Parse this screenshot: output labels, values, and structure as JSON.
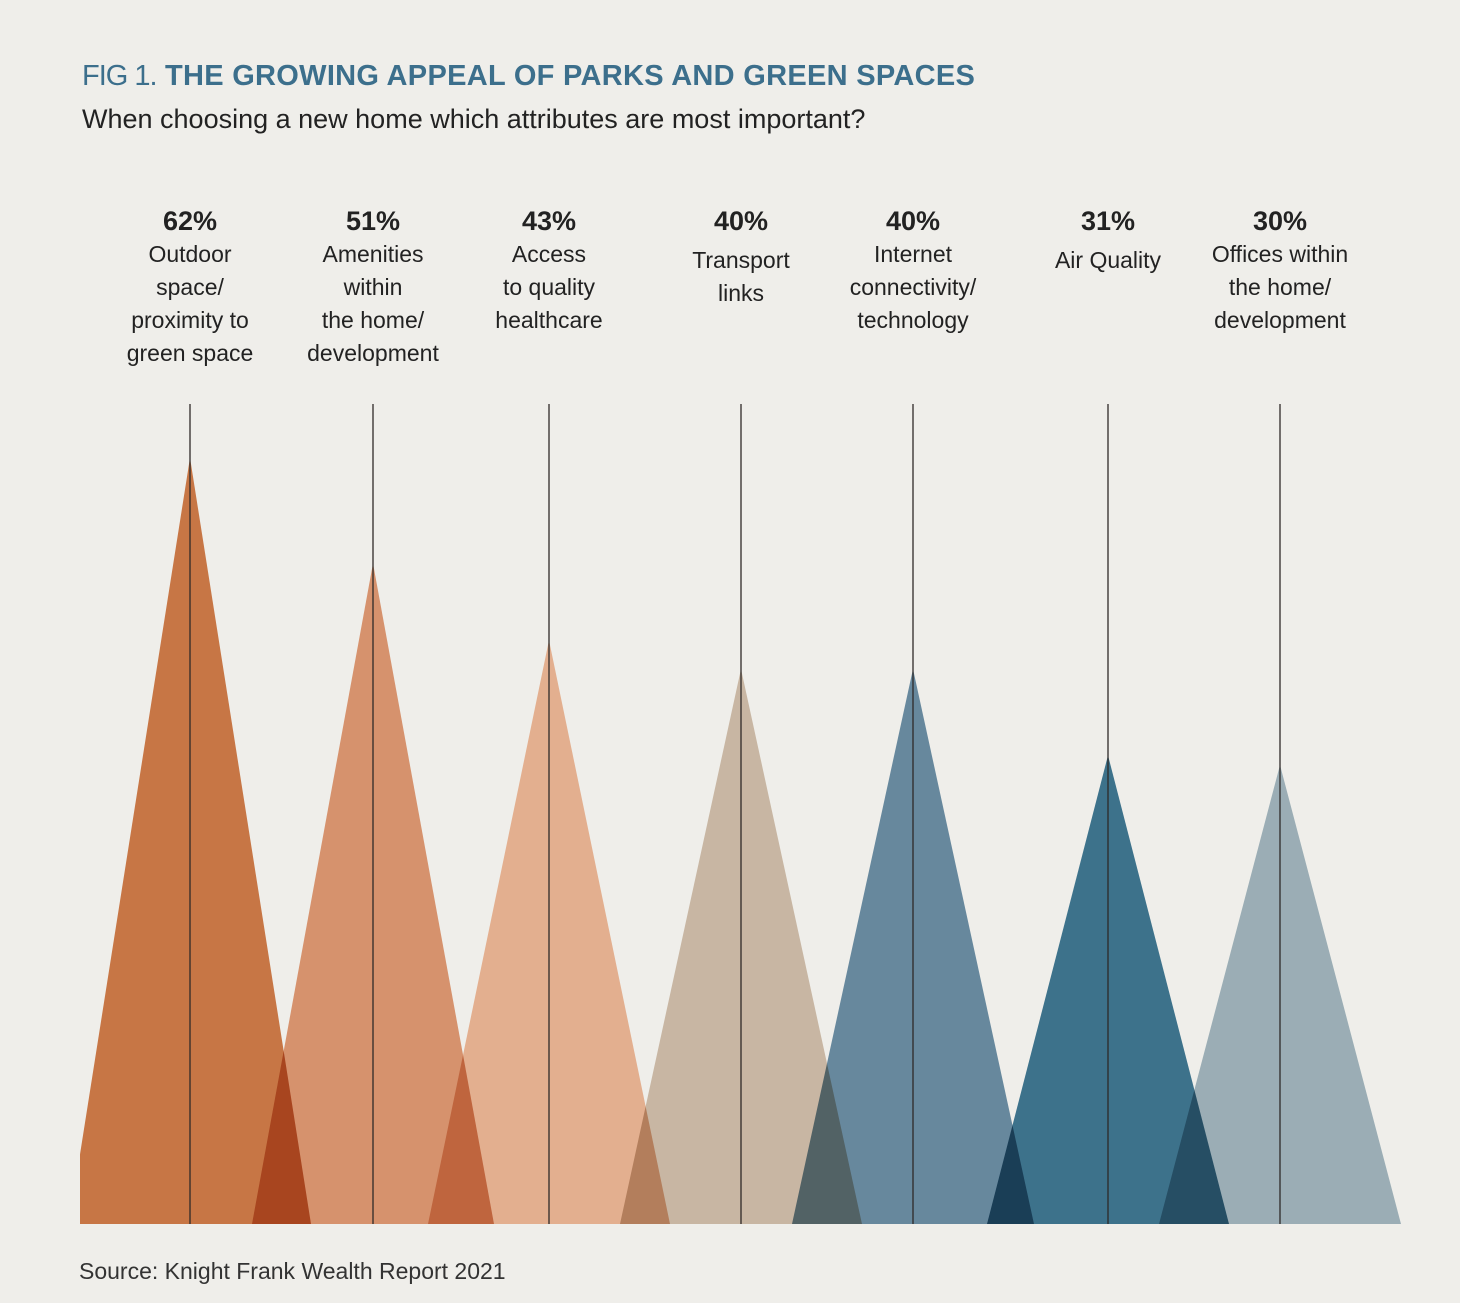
{
  "chart_data": {
    "type": "bar",
    "style": "triangles",
    "title_prefix": "FIG 1.",
    "title": "THE GROWING APPEAL OF PARKS AND GREEN SPACES",
    "subtitle": "When choosing a new home which attributes are most important?",
    "source": "Source: Knight Frank Wealth Report 2021",
    "categories": [
      "Outdoor\nspace/\nproximity to\ngreen space",
      "Amenities\nwithin\nthe home/\ndevelopment",
      "Access\nto quality\nhealthcare",
      "Transport\nlinks",
      "Internet\nconnectivity/\ntechnology",
      "Air Quality",
      "Offices within\nthe home/\ndevelopment"
    ],
    "values": [
      62,
      51,
      43,
      40,
      40,
      31,
      30
    ],
    "value_labels": [
      "62%",
      "51%",
      "43%",
      "40%",
      "40%",
      "31%",
      "30%"
    ],
    "colors": [
      "#c5713f",
      "#d58e68",
      "#e2ad8b",
      "#c6b4a0",
      "#62849a",
      "#366d87",
      "#98abb3"
    ],
    "unit": "%"
  }
}
